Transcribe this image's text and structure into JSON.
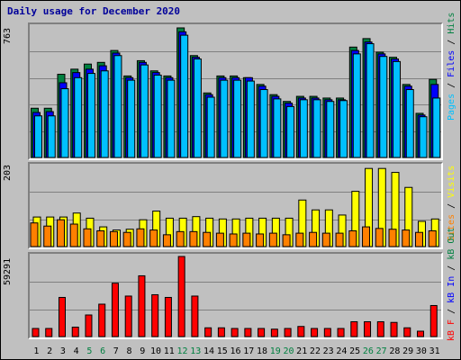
{
  "title": "Daily usage for December 2020",
  "legend_top": {
    "pages": "Pages",
    "sep1": " / ",
    "files": "Files",
    "sep2": " / ",
    "hits": "Hits"
  },
  "legend_mid": {
    "sites": "Sites",
    "sep": " / ",
    "visits": "Visits"
  },
  "legend_bot": {
    "kbf": "kB F",
    "sep1": " / ",
    "kbin": "kB In",
    "sep2": " / ",
    "kbout": "kB Out"
  },
  "colors": {
    "hits": "#008040",
    "files": "#0000ff",
    "pages": "#00c0ff",
    "visits": "#ffff00",
    "sites": "#ff8000",
    "kbytes": "#ff0000",
    "weekend_label": "#008040"
  },
  "chart_data": [
    {
      "type": "bar",
      "categories": [
        "1",
        "2",
        "3",
        "4",
        "5",
        "6",
        "7",
        "8",
        "9",
        "10",
        "11",
        "12",
        "13",
        "14",
        "15",
        "16",
        "17",
        "18",
        "19",
        "20",
        "21",
        "22",
        "23",
        "24",
        "25",
        "26",
        "27",
        "28",
        "29",
        "30",
        "31"
      ],
      "weekend_days": [
        "5",
        "6",
        "12",
        "13",
        "19",
        "20",
        "26",
        "27"
      ],
      "ymax_label": "763",
      "ylim": [
        0,
        763
      ],
      "series": [
        {
          "name": "Hits",
          "values": [
            290,
            290,
            490,
            520,
            550,
            560,
            630,
            480,
            570,
            510,
            480,
            763,
            600,
            380,
            480,
            480,
            470,
            430,
            370,
            330,
            360,
            360,
            350,
            350,
            650,
            700,
            620,
            590,
            430,
            260,
            460
          ]
        },
        {
          "name": "Files",
          "values": [
            265,
            270,
            440,
            500,
            520,
            540,
            615,
            470,
            560,
            500,
            470,
            740,
            590,
            370,
            470,
            470,
            470,
            420,
            360,
            320,
            350,
            350,
            340,
            340,
            630,
            680,
            610,
            580,
            420,
            250,
            430
          ]
        },
        {
          "name": "Pages",
          "values": [
            245,
            245,
            405,
            470,
            495,
            510,
            600,
            455,
            545,
            485,
            455,
            720,
            580,
            355,
            455,
            455,
            450,
            400,
            345,
            300,
            340,
            340,
            330,
            335,
            610,
            670,
            595,
            565,
            400,
            240,
            350
          ]
        }
      ]
    },
    {
      "type": "bar",
      "categories": [
        "1",
        "2",
        "3",
        "4",
        "5",
        "6",
        "7",
        "8",
        "9",
        "10",
        "11",
        "12",
        "13",
        "14",
        "15",
        "16",
        "17",
        "18",
        "19",
        "20",
        "21",
        "22",
        "23",
        "24",
        "25",
        "26",
        "27",
        "28",
        "29",
        "30",
        "31"
      ],
      "ymax_label": "203",
      "ylim": [
        0,
        203
      ],
      "series": [
        {
          "name": "Visits",
          "values": [
            75,
            75,
            75,
            85,
            72,
            50,
            42,
            44,
            68,
            90,
            72,
            72,
            76,
            72,
            70,
            70,
            72,
            72,
            72,
            72,
            118,
            93,
            93,
            80,
            140,
            198,
            198,
            188,
            150,
            64,
            70
          ]
        },
        {
          "name": "Sites",
          "values": [
            60,
            52,
            68,
            57,
            45,
            40,
            38,
            36,
            45,
            42,
            30,
            38,
            38,
            36,
            34,
            32,
            34,
            32,
            34,
            30,
            34,
            36,
            34,
            34,
            40,
            50,
            46,
            44,
            42,
            36,
            40
          ]
        }
      ]
    },
    {
      "type": "bar",
      "categories": [
        "1",
        "2",
        "3",
        "4",
        "5",
        "6",
        "7",
        "8",
        "9",
        "10",
        "11",
        "12",
        "13",
        "14",
        "15",
        "16",
        "17",
        "18",
        "19",
        "20",
        "21",
        "22",
        "23",
        "24",
        "25",
        "26",
        "27",
        "28",
        "29",
        "30",
        "31"
      ],
      "ymax_label": "59291",
      "ylim": [
        0,
        59291
      ],
      "series": [
        {
          "name": "kB F",
          "values": [
            6000,
            6000,
            29000,
            7000,
            16000,
            24000,
            39500,
            30000,
            45000,
            31000,
            29000,
            59291,
            30000,
            6500,
            6500,
            6000,
            6000,
            6000,
            5500,
            6000,
            7500,
            6000,
            6000,
            6000,
            11000,
            11000,
            11000,
            10500,
            6500,
            4000,
            23000
          ]
        }
      ]
    }
  ]
}
